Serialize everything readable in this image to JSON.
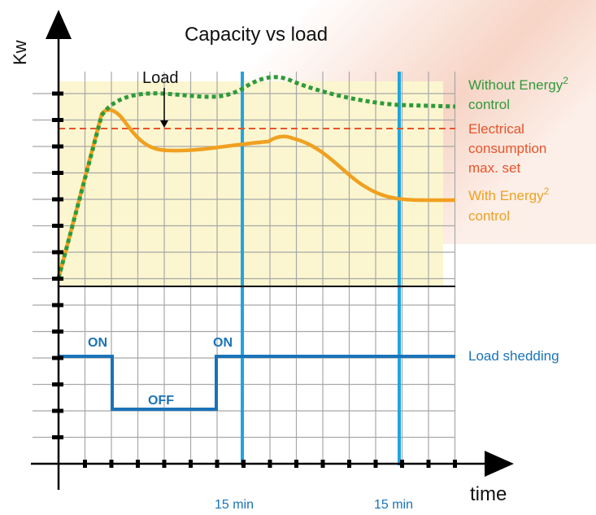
{
  "title": "Capacity vs load",
  "y_axis_label": "Kw",
  "x_axis_label": "time",
  "load_label": "Load",
  "legend": {
    "without": {
      "line1": "Without Energy",
      "sup": "2",
      "line2": "control"
    },
    "max_set": {
      "line1": "Electrical",
      "line2": "consumption",
      "line3": "max. set"
    },
    "with": {
      "line1": "With Energy",
      "sup": "2",
      "line2": "control"
    },
    "shedding": "Load shedding"
  },
  "states": {
    "on1": "ON",
    "off": "OFF",
    "on2": "ON"
  },
  "intervals": [
    "15 min",
    "15 min"
  ]
}
